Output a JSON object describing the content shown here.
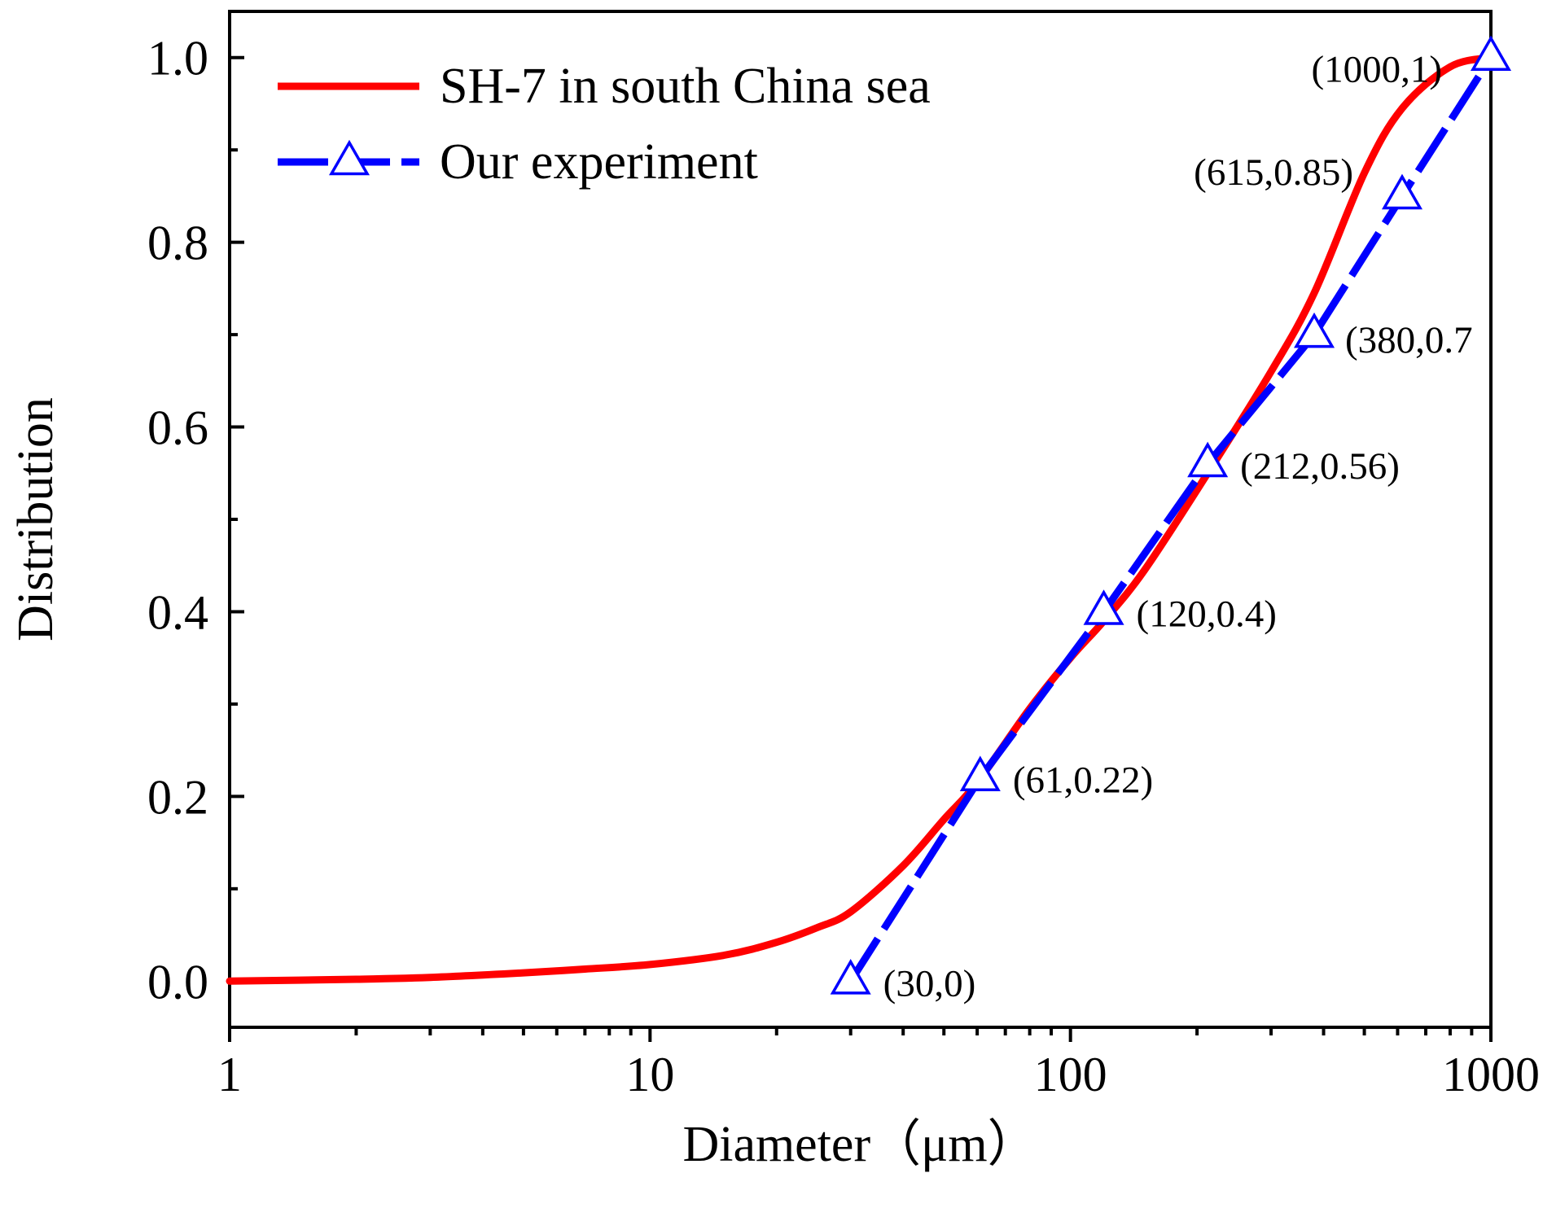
{
  "chart_data": {
    "type": "line",
    "title": "",
    "xlabel": "Diameter（μm）",
    "ylabel": "Distribution",
    "xscale": "log",
    "xlim": [
      1,
      1000
    ],
    "ylim": [
      -0.05,
      1.05
    ],
    "xticks": [
      1,
      10,
      100,
      1000
    ],
    "xtick_labels": [
      "1",
      "10",
      "100",
      "1000"
    ],
    "yticks": [
      0.0,
      0.2,
      0.4,
      0.6,
      0.8,
      1.0
    ],
    "ytick_labels": [
      "0.0",
      "0.2",
      "0.4",
      "0.6",
      "0.8",
      "1.0"
    ],
    "legend_position": "top-left",
    "grid": false,
    "series": [
      {
        "name": "SH-7 in south China sea",
        "color": "#ff0000",
        "style": "solid",
        "marker": "none",
        "x": [
          1,
          2,
          3,
          5,
          7,
          10,
          15,
          20,
          25,
          30,
          40,
          50,
          60,
          80,
          100,
          120,
          150,
          212,
          300,
          380,
          500,
          615,
          800,
          1000
        ],
        "y": [
          0,
          0.002,
          0.004,
          0.009,
          0.013,
          0.018,
          0.028,
          0.042,
          0.058,
          0.075,
          0.125,
          0.175,
          0.215,
          0.295,
          0.35,
          0.39,
          0.445,
          0.55,
          0.66,
          0.745,
          0.875,
          0.945,
          0.99,
          1.0
        ]
      },
      {
        "name": "Our experiment",
        "color": "#0000ff",
        "style": "dashed",
        "marker": "open-triangle",
        "x": [
          30,
          61,
          120,
          212,
          380,
          615,
          1000
        ],
        "y": [
          0,
          0.22,
          0.4,
          0.56,
          0.7,
          0.85,
          1.0
        ]
      }
    ],
    "annotations": [
      {
        "text": "(30,0)",
        "x": 30,
        "y": 0
      },
      {
        "text": "(61,0.22)",
        "x": 61,
        "y": 0.22
      },
      {
        "text": "(120,0.4)",
        "x": 120,
        "y": 0.4
      },
      {
        "text": "(212,0.56)",
        "x": 212,
        "y": 0.56
      },
      {
        "text": "(380,0.7",
        "x": 380,
        "y": 0.7
      },
      {
        "text": "(615,0.85)",
        "x": 615,
        "y": 0.85
      },
      {
        "text": "(1000,1)",
        "x": 1000,
        "y": 1.0
      }
    ]
  }
}
